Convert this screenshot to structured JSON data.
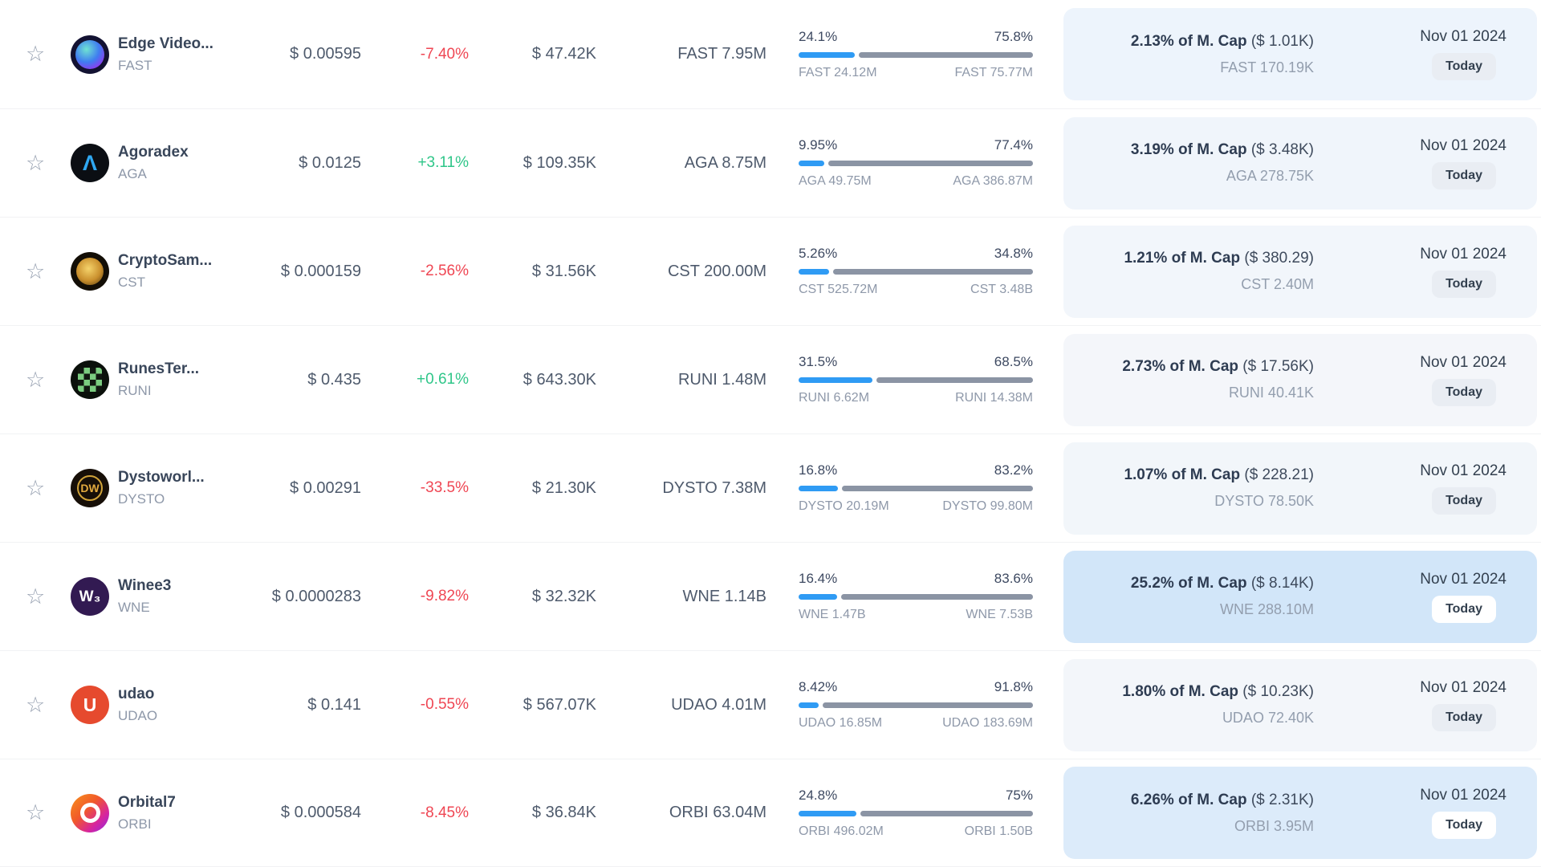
{
  "columns": [
    "favorite",
    "coin",
    "price",
    "change_24h",
    "value",
    "supply",
    "distribution",
    "market_cap_share",
    "date"
  ],
  "colors": {
    "bar_blue": "#2f9bf4",
    "bar_gray": "#8b94a4",
    "positive": "#2fc689",
    "negative": "#ef4653",
    "highlight_panel": "#d2e6f9",
    "light_panel": "#f2f6fb"
  },
  "rows": [
    {
      "name": "Edge Video...",
      "ticker": "FAST",
      "price": "$ 0.00595",
      "change": "-7.40%",
      "change_style": "color:#ef4653",
      "value": "$ 47.42K",
      "supply": "FAST 7.95M",
      "left_pct": "24.1%",
      "right_pct": "75.8%",
      "left_label": "FAST 24.12M",
      "right_label": "FAST 75.77M",
      "bar_left_style": "width:24.1%",
      "mcap_pct": "2.13% of M. Cap",
      "mcap_usd": " ($ 1.01K)",
      "mcap_amount": "FAST 170.19K",
      "date": "Nov 01 2024",
      "badge": "Today",
      "panel_style": "background:#edf4fc",
      "badge_style": "background:#e9edf3",
      "logo_style": "background:#131232",
      "logo_blob_style": "width:36px;height:36px;border-radius:50%;background:radial-gradient(circle at 38% 32%,#6fe3d2,#3f7df0 48%,#8a3ff0 78%,#1b1040)",
      "logo_text": "",
      "logo_text_style": ""
    },
    {
      "name": "Agoradex",
      "ticker": "AGA",
      "price": "$ 0.0125",
      "change": "+3.11%",
      "change_style": "color:#2fc689",
      "value": "$ 109.35K",
      "supply": "AGA 8.75M",
      "left_pct": "9.95%",
      "right_pct": "77.4%",
      "left_label": "AGA 49.75M",
      "right_label": "AGA 386.87M",
      "bar_left_style": "width:11%",
      "mcap_pct": "3.19% of M. Cap",
      "mcap_usd": " ($ 3.48K)",
      "mcap_amount": "AGA 278.75K",
      "date": "Nov 01 2024",
      "badge": "Today",
      "panel_style": "background:#f0f5fb",
      "badge_style": "background:#e9edf3",
      "logo_style": "background:#0b0e13",
      "logo_blob_style": "",
      "logo_text": "Λ",
      "logo_text_style": "color:#2fa8f2;font-size:27px"
    },
    {
      "name": "CryptoSam...",
      "ticker": "CST",
      "price": "$ 0.000159",
      "change": "-2.56%",
      "change_style": "color:#ef4653",
      "value": "$ 31.56K",
      "supply": "CST 200.00M",
      "left_pct": "5.26%",
      "right_pct": "34.8%",
      "left_label": "CST 525.72M",
      "right_label": "CST 3.48B",
      "bar_left_style": "width:13%",
      "mcap_pct": "1.21% of M. Cap",
      "mcap_usd": " ($ 380.29)",
      "mcap_amount": "CST 2.40M",
      "date": "Nov 01 2024",
      "badge": "Today",
      "panel_style": "background:#f2f6fb",
      "badge_style": "background:#e9edf3",
      "logo_style": "background:#130e06",
      "logo_blob_style": "width:34px;height:34px;border-radius:50%;background:radial-gradient(circle at 45% 40%,#f5d36b,#c98f2d 55%,#6b4a12 90%)",
      "logo_text": "",
      "logo_text_style": ""
    },
    {
      "name": "RunesTer...",
      "ticker": "RUNI",
      "price": "$ 0.435",
      "change": "+0.61%",
      "change_style": "color:#2fc689",
      "value": "$ 643.30K",
      "supply": "RUNI 1.48M",
      "left_pct": "31.5%",
      "right_pct": "68.5%",
      "left_label": "RUNI 6.62M",
      "right_label": "RUNI 14.38M",
      "bar_left_style": "width:31.5%",
      "mcap_pct": "2.73% of M. Cap",
      "mcap_usd": " ($ 17.56K)",
      "mcap_amount": "RUNI 40.41K",
      "date": "Nov 01 2024",
      "badge": "Today",
      "panel_style": "background:#f4f6fa",
      "badge_style": "background:#e9edf3",
      "logo_style": "background:#0b100b",
      "logo_blob_style": "width:30px;height:30px;border-radius:4px;background:conic-gradient(#7bcc80 25%,#101710 0 50%,#7bcc80 0 75%,#101710 0);background-size:15px 15px",
      "logo_text": "",
      "logo_text_style": ""
    },
    {
      "name": "Dystoworl...",
      "ticker": "DYSTO",
      "price": "$ 0.00291",
      "change": "-33.5%",
      "change_style": "color:#ef4653",
      "value": "$ 21.30K",
      "supply": "DYSTO 7.38M",
      "left_pct": "16.8%",
      "right_pct": "83.2%",
      "left_label": "DYSTO 20.19M",
      "right_label": "DYSTO 99.80M",
      "bar_left_style": "width:16.8%",
      "mcap_pct": "1.07% of M. Cap",
      "mcap_usd": " ($ 228.21)",
      "mcap_amount": "DYSTO 78.50K",
      "date": "Nov 01 2024",
      "badge": "Today",
      "panel_style": "background:#f2f6fa",
      "badge_style": "background:#e9edf3",
      "logo_style": "background:#170f08",
      "logo_blob_style": "width:32px;height:32px;border:2px solid #d1a339;border-radius:50%",
      "logo_text": "DW",
      "logo_text_style": "color:#e3aa3e;font-size:14px"
    },
    {
      "name": "Winee3",
      "ticker": "WNE",
      "price": "$ 0.0000283",
      "change": "-9.82%",
      "change_style": "color:#ef4653",
      "value": "$ 32.32K",
      "supply": "WNE 1.14B",
      "left_pct": "16.4%",
      "right_pct": "83.6%",
      "left_label": "WNE 1.47B",
      "right_label": "WNE 7.53B",
      "bar_left_style": "width:16.4%",
      "mcap_pct": "25.2% of M. Cap",
      "mcap_usd": " ($ 8.14K)",
      "mcap_amount": "WNE 288.10M",
      "date": "Nov 01 2024",
      "badge": "Today",
      "panel_style": "background:#d2e6f9",
      "badge_style": "background:#ffffff",
      "logo_style": "background:#321a52",
      "logo_blob_style": "",
      "logo_text": "W₃",
      "logo_text_style": "color:#ffffff;font-size:19px"
    },
    {
      "name": "udao",
      "ticker": "UDAO",
      "price": "$ 0.141",
      "change": "-0.55%",
      "change_style": "color:#ef4653",
      "value": "$ 567.07K",
      "supply": "UDAO 4.01M",
      "left_pct": "8.42%",
      "right_pct": "91.8%",
      "left_label": "UDAO 16.85M",
      "right_label": "UDAO 183.69M",
      "bar_left_style": "width:8.42%",
      "mcap_pct": "1.80% of M. Cap",
      "mcap_usd": " ($ 10.23K)",
      "mcap_amount": "UDAO 72.40K",
      "date": "Nov 01 2024",
      "badge": "Today",
      "panel_style": "background:#f3f6fa",
      "badge_style": "background:#e9edf3",
      "logo_style": "background:#e64a2e",
      "logo_blob_style": "",
      "logo_text": "U",
      "logo_text_style": "color:#ffffff;font-size:23px"
    },
    {
      "name": "Orbital7",
      "ticker": "ORBI",
      "price": "$ 0.000584",
      "change": "-8.45%",
      "change_style": "color:#ef4653",
      "value": "$ 36.84K",
      "supply": "ORBI 63.04M",
      "left_pct": "24.8%",
      "right_pct": "75%",
      "left_label": "ORBI 496.02M",
      "right_label": "ORBI 1.50B",
      "bar_left_style": "width:24.8%",
      "mcap_pct": "6.26% of M. Cap",
      "mcap_usd": " ($ 2.31K)",
      "mcap_amount": "ORBI 3.95M",
      "date": "Nov 01 2024",
      "badge": "Today",
      "panel_style": "background:#dcebfa",
      "badge_style": "background:#ffffff",
      "logo_style": "background:linear-gradient(135deg,#f7941d,#f15a29 40%,#d6249f 72%,#8a2be2)",
      "logo_blob_style": "width:25px;height:25px;border:5px solid #ffffff;border-radius:50%;transform:rotate(25deg)",
      "logo_text": "",
      "logo_text_style": ""
    }
  ]
}
